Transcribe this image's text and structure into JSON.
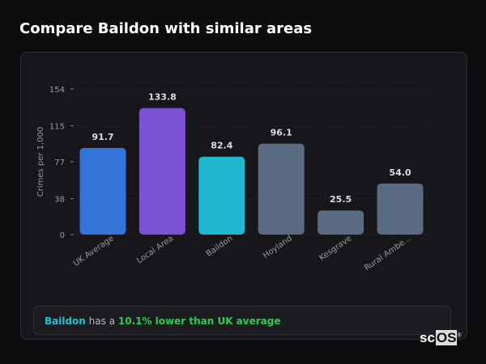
{
  "title": "Compare Baildon with similar areas",
  "chart_data": {
    "type": "bar",
    "title": "",
    "xlabel": "",
    "ylabel": "Crimes per 1,000",
    "categories": [
      "UK Average",
      "Local Area",
      "Baildon",
      "Hoyland",
      "Kesgrave",
      "Rural Ambe..."
    ],
    "values": [
      91.7,
      133.8,
      82.4,
      96.1,
      25.5,
      54.0
    ],
    "value_labels": [
      "91.7",
      "133.8",
      "82.4",
      "96.1",
      "25.5",
      "54.0"
    ],
    "colors": [
      "#3374d8",
      "#7b52d4",
      "#1fb8cf",
      "#5a6a80",
      "#5a6a80",
      "#5a6a80"
    ],
    "yticks": [
      0,
      38,
      77,
      115,
      154
    ],
    "ytick_labels": [
      "0",
      "38",
      "77",
      "115",
      "154"
    ],
    "ylim": [
      0,
      154
    ],
    "grid": true
  },
  "summary": {
    "area": "Baildon",
    "middle": " has a ",
    "highlight": "10.1% lower than UK average"
  },
  "logo": {
    "a": "sc",
    "b": "OS",
    "mark": "®"
  }
}
